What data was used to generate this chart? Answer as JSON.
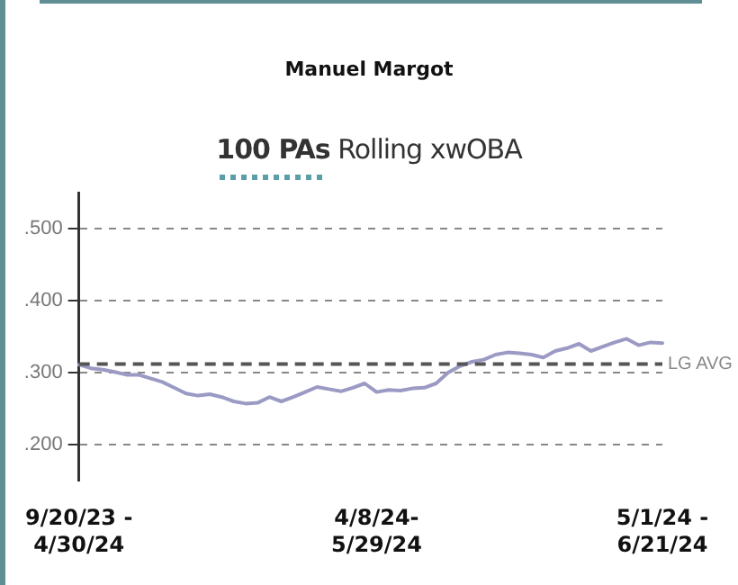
{
  "chart_data": {
    "type": "line",
    "title": "Manuel Margot",
    "subtitle": "100 PAs Rolling xwOBA",
    "categories": [
      "9/20/23 - 4/30/24",
      null,
      null,
      null,
      null,
      null,
      null,
      null,
      null,
      null,
      null,
      null,
      null,
      null,
      null,
      null,
      null,
      null,
      null,
      null,
      null,
      null,
      null,
      null,
      null,
      "4/8/24- 5/29/24",
      null,
      null,
      null,
      null,
      null,
      null,
      null,
      null,
      null,
      null,
      null,
      null,
      null,
      null,
      null,
      null,
      null,
      null,
      null,
      null,
      null,
      null,
      null,
      "5/1/24 - 6/21/24"
    ],
    "series": [
      {
        "color": "#9a9ac4",
        "values": [
          0.311,
          0.306,
          0.304,
          0.301,
          0.297,
          0.297,
          0.292,
          0.287,
          0.279,
          0.271,
          0.268,
          0.27,
          0.266,
          0.26,
          0.257,
          0.258,
          0.266,
          0.26,
          0.266,
          0.273,
          0.28,
          0.277,
          0.274,
          0.279,
          0.285,
          0.273,
          0.276,
          0.275,
          0.278,
          0.279,
          0.285,
          0.3,
          0.309,
          0.315,
          0.318,
          0.325,
          0.328,
          0.327,
          0.325,
          0.321,
          0.33,
          0.334,
          0.34,
          0.33,
          0.336,
          0.342,
          0.347,
          0.338,
          0.342,
          0.341
        ]
      }
    ],
    "ylim": [
      0.15,
      0.55
    ],
    "yticks": [
      {
        "value": 0.2,
        "label": ".200"
      },
      {
        "value": 0.3,
        "label": ".300"
      },
      {
        "value": 0.4,
        "label": ".400"
      },
      {
        "value": 0.5,
        "label": ".500"
      }
    ],
    "grid": "y",
    "legend": false,
    "marker": "none",
    "line_style": "solid",
    "ref_lines": [
      {
        "axis": "y",
        "value": 0.312,
        "label": "LG AVG",
        "color": "#555555",
        "line_style": "dashed"
      }
    ]
  }
}
